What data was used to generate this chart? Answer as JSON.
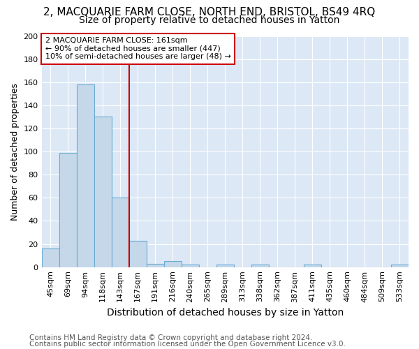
{
  "title": "2, MACQUARIE FARM CLOSE, NORTH END, BRISTOL, BS49 4RQ",
  "subtitle": "Size of property relative to detached houses in Yatton",
  "xlabel": "Distribution of detached houses by size in Yatton",
  "ylabel": "Number of detached properties",
  "bar_categories": [
    "45sqm",
    "69sqm",
    "94sqm",
    "118sqm",
    "143sqm",
    "167sqm",
    "191sqm",
    "216sqm",
    "240sqm",
    "265sqm",
    "289sqm",
    "313sqm",
    "338sqm",
    "362sqm",
    "387sqm",
    "411sqm",
    "435sqm",
    "460sqm",
    "484sqm",
    "509sqm",
    "533sqm"
  ],
  "bar_values": [
    16,
    99,
    158,
    130,
    60,
    23,
    3,
    5,
    2,
    0,
    2,
    0,
    2,
    0,
    0,
    2,
    0,
    0,
    0,
    0,
    2
  ],
  "bar_color": "#c5d8ea",
  "bar_edge_color": "#6aaad4",
  "vline_color": "#cc0000",
  "annotation_text_line1": "2 MACQUARIE FARM CLOSE: 161sqm",
  "annotation_text_line2": "← 90% of detached houses are smaller (447)",
  "annotation_text_line3": "10% of semi-detached houses are larger (48) →",
  "annotation_box_color": "#ffffff",
  "annotation_box_edge": "#cc0000",
  "ylim": [
    0,
    200
  ],
  "yticks": [
    0,
    20,
    40,
    60,
    80,
    100,
    120,
    140,
    160,
    180,
    200
  ],
  "figure_bg": "#ffffff",
  "axes_bg_color": "#dce8f5",
  "grid_color": "#ffffff",
  "footer1": "Contains HM Land Registry data © Crown copyright and database right 2024.",
  "footer2": "Contains public sector information licensed under the Open Government Licence v3.0.",
  "title_fontsize": 11,
  "subtitle_fontsize": 10,
  "xlabel_fontsize": 10,
  "ylabel_fontsize": 9,
  "tick_fontsize": 8,
  "footer_fontsize": 7.5
}
